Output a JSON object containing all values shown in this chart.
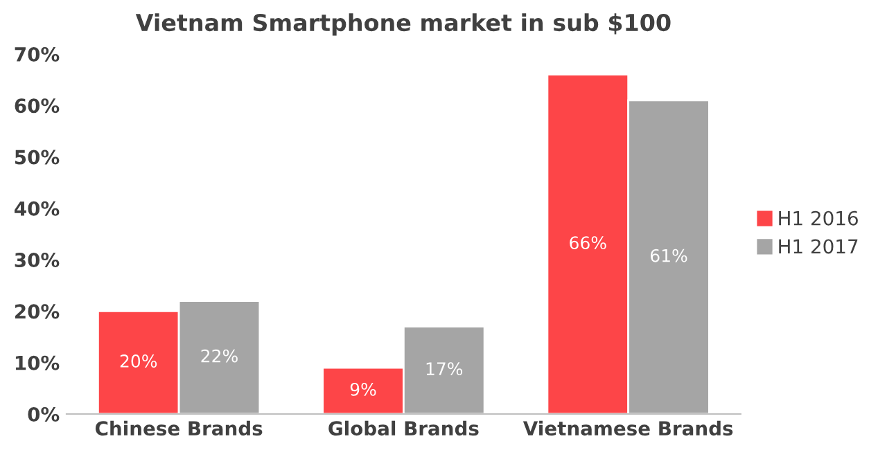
{
  "chart_data": {
    "type": "bar",
    "title": "Vietnam Smartphone market in sub $100",
    "categories": [
      "Chinese Brands",
      "Global Brands",
      "Vietnamese Brands"
    ],
    "series": [
      {
        "name": "H1 2016",
        "color": "#fd4548",
        "values": [
          20,
          9,
          66
        ],
        "value_labels": [
          "20%",
          "9%",
          "66%"
        ]
      },
      {
        "name": "H1 2017",
        "color": "#a5a5a5",
        "values": [
          22,
          17,
          61
        ],
        "value_labels": [
          "22%",
          "17%",
          "61%"
        ]
      }
    ],
    "ylim": [
      0,
      70
    ],
    "yticks": [
      {
        "value": 0,
        "label": "0%"
      },
      {
        "value": 10,
        "label": "10%"
      },
      {
        "value": 20,
        "label": "20%"
      },
      {
        "value": 30,
        "label": "30%"
      },
      {
        "value": 40,
        "label": "40%"
      },
      {
        "value": 50,
        "label": "50%"
      },
      {
        "value": 60,
        "label": "60%"
      },
      {
        "value": 70,
        "label": "70%"
      }
    ],
    "grid": false,
    "legend": "right"
  }
}
